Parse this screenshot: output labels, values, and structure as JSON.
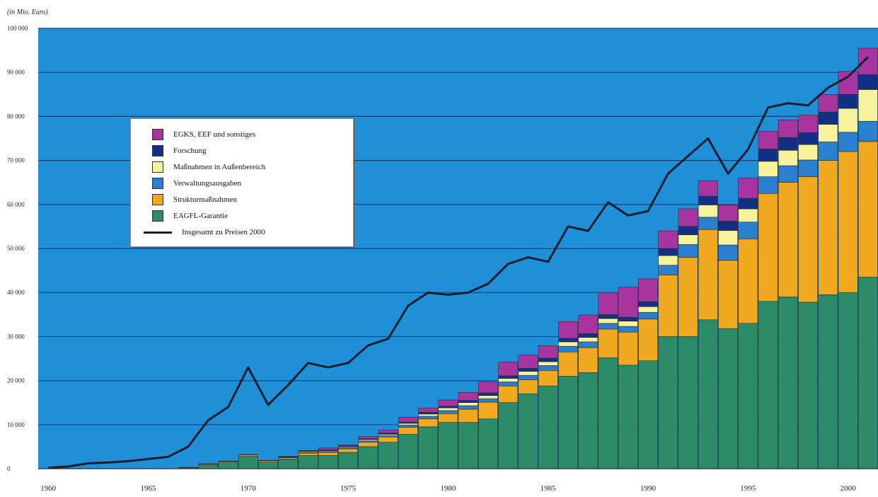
{
  "chart_data": {
    "type": "bar",
    "unit_label": "(in Mio. Euro)",
    "ylim": [
      0,
      100000
    ],
    "y_ticks": [
      0,
      10000,
      20000,
      30000,
      40000,
      50000,
      60000,
      70000,
      80000,
      90000,
      100000
    ],
    "y_tick_labels": [
      "0",
      "10 000",
      "20 000",
      "30 000",
      "40 000",
      "50 000",
      "60 000",
      "70 000",
      "80 000",
      "90 000",
      "100 000"
    ],
    "x_tick_labels": [
      "1960",
      "1965",
      "1970",
      "1975",
      "1980",
      "1985",
      "1990",
      "1995",
      "2000"
    ],
    "x_tick_years": [
      1960,
      1965,
      1970,
      1975,
      1980,
      1985,
      1990,
      1995,
      2000
    ],
    "grid": true,
    "legend_position": "upper-left",
    "colors": {
      "background": "#1f8fd8",
      "grid": "#1a3f72",
      "bar_outline": "#2a2a2a",
      "line": "#1a1d2b"
    },
    "categories": [
      1960,
      1961,
      1962,
      1963,
      1964,
      1965,
      1966,
      1967,
      1968,
      1969,
      1970,
      1971,
      1972,
      1973,
      1974,
      1975,
      1976,
      1977,
      1978,
      1979,
      1980,
      1981,
      1982,
      1983,
      1984,
      1985,
      1986,
      1987,
      1988,
      1989,
      1990,
      1991,
      1992,
      1993,
      1994,
      1995,
      1996,
      1997,
      1998,
      1999,
      2000,
      2001
    ],
    "series": [
      {
        "name": "EAGFL-Garantie",
        "color": "#2c8c6a",
        "values": [
          0,
          0,
          0,
          0,
          0,
          0,
          0,
          200,
          900,
          1500,
          2800,
          1500,
          2200,
          3000,
          3000,
          3700,
          5000,
          6000,
          7800,
          9500,
          10500,
          10500,
          11300,
          15000,
          17000,
          18800,
          21000,
          21800,
          25200,
          23500,
          24500,
          30000,
          30000,
          33800,
          31800,
          33000,
          38000,
          39000,
          37800,
          39500,
          40000,
          43500
        ]
      },
      {
        "name": "Strukturmaßnahmen",
        "color": "#f0a81e",
        "values": [
          0,
          0,
          0,
          0,
          0,
          0,
          0,
          100,
          200,
          200,
          300,
          300,
          300,
          500,
          700,
          800,
          1000,
          1200,
          1600,
          1800,
          2000,
          3000,
          3800,
          3800,
          3200,
          3500,
          5500,
          5700,
          6500,
          7500,
          9500,
          14000,
          18000,
          20500,
          15500,
          19200,
          24500,
          26000,
          28500,
          30500,
          32000,
          30800
        ]
      },
      {
        "name": "Verwaltungsausgaben",
        "color": "#2a7fd0",
        "values": [
          0,
          0,
          0,
          0,
          0,
          0,
          0,
          0,
          50,
          50,
          100,
          100,
          100,
          200,
          200,
          300,
          300,
          300,
          500,
          600,
          700,
          800,
          800,
          900,
          1000,
          1100,
          1300,
          1300,
          1300,
          1300,
          1500,
          2200,
          2900,
          2800,
          3500,
          3800,
          3800,
          3800,
          3800,
          4200,
          4400,
          4600
        ]
      },
      {
        "name": "Maßnahmen in Außenbereich",
        "color": "#f6f29c",
        "values": [
          0,
          0,
          0,
          0,
          0,
          0,
          0,
          0,
          0,
          0,
          0,
          0,
          100,
          200,
          200,
          200,
          300,
          300,
          400,
          500,
          600,
          700,
          700,
          800,
          900,
          900,
          1000,
          1000,
          1100,
          1200,
          1300,
          2200,
          2200,
          2800,
          3300,
          3000,
          3500,
          3500,
          3500,
          4000,
          5400,
          7200
        ]
      },
      {
        "name": "Forschung",
        "color": "#142f86",
        "values": [
          0,
          0,
          0,
          0,
          0,
          0,
          0,
          0,
          0,
          0,
          0,
          0,
          100,
          200,
          200,
          200,
          200,
          300,
          300,
          400,
          400,
          500,
          600,
          600,
          700,
          800,
          800,
          900,
          900,
          900,
          1100,
          1600,
          1900,
          2000,
          2100,
          2400,
          2800,
          2900,
          2700,
          2800,
          3200,
          3400
        ]
      },
      {
        "name": "EGKS, EEF und sonstiges",
        "color": "#a8359f",
        "values": [
          0,
          0,
          0,
          0,
          0,
          0,
          0,
          0,
          0,
          0,
          0,
          0,
          0,
          0,
          400,
          200,
          500,
          700,
          1100,
          1000,
          1400,
          1800,
          2500,
          3100,
          3000,
          2800,
          3800,
          4200,
          5000,
          6800,
          5200,
          4000,
          4000,
          3500,
          3600,
          4600,
          4000,
          4000,
          4000,
          4000,
          5200,
          6000
        ]
      }
    ],
    "line": {
      "name": "Insgesamt zu Preisen 2000",
      "values": [
        200,
        500,
        1200,
        1400,
        1700,
        2200,
        2700,
        5000,
        11000,
        14000,
        23000,
        14500,
        19000,
        24000,
        23000,
        24000,
        28000,
        29500,
        37000,
        40000,
        39500,
        40000,
        42000,
        46500,
        48000,
        47000,
        55000,
        54000,
        60500,
        57500,
        58500,
        67000,
        71000,
        75000,
        67000,
        72500,
        82000,
        83000,
        82500,
        86500,
        89000,
        93500
      ]
    }
  }
}
